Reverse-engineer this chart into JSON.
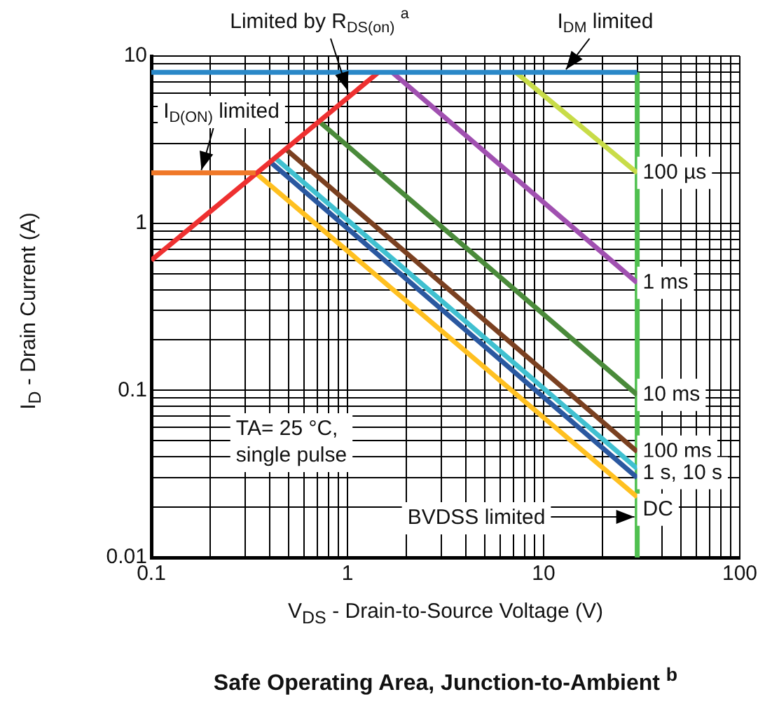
{
  "chart_data": {
    "type": "line",
    "title": "Safe Operating Area, Junction-to-Ambient $^{b}$",
    "xlabel": "V$_{DS}$ - Drain-to-Source Voltage (V)",
    "ylabel": "I$_{D}$ - Drain Current (A)",
    "log": "xy",
    "grid": true,
    "legend": false,
    "marker": "none",
    "xlim": [
      0.1,
      100
    ],
    "ylim": [
      0.01,
      10
    ],
    "xticks": [
      0.1,
      {
        "value": 0.2,
        "label": null
      },
      {
        "value": 0.3,
        "label": null
      },
      {
        "value": 0.4,
        "label": null
      },
      {
        "value": 0.5,
        "label": null
      },
      {
        "value": 0.6,
        "label": null
      },
      {
        "value": 0.7,
        "label": null
      },
      {
        "value": 0.8,
        "label": null
      },
      {
        "value": 0.9,
        "label": null
      },
      1,
      {
        "value": 2,
        "label": null
      },
      {
        "value": 3,
        "label": null
      },
      {
        "value": 4,
        "label": null
      },
      {
        "value": 5,
        "label": null
      },
      {
        "value": 6,
        "label": null
      },
      {
        "value": 7,
        "label": null
      },
      {
        "value": 8,
        "label": null
      },
      {
        "value": 9,
        "label": null
      },
      10,
      {
        "value": 20,
        "label": null
      },
      {
        "value": 30,
        "label": null
      },
      {
        "value": 40,
        "label": null
      },
      {
        "value": 50,
        "label": null
      },
      {
        "value": 60,
        "label": null
      },
      {
        "value": 70,
        "label": null
      },
      {
        "value": 80,
        "label": null
      },
      {
        "value": 90,
        "label": null
      },
      100
    ],
    "yticks": [
      0.01,
      {
        "value": 0.02,
        "label": null
      },
      {
        "value": 0.03,
        "label": null
      },
      {
        "value": 0.04,
        "label": null
      },
      {
        "value": 0.05,
        "label": null
      },
      {
        "value": 0.06,
        "label": null
      },
      {
        "value": 0.07,
        "label": null
      },
      {
        "value": 0.08,
        "label": null
      },
      {
        "value": 0.09,
        "label": null
      },
      0.1,
      {
        "value": 0.2,
        "label": null
      },
      {
        "value": 0.3,
        "label": null
      },
      {
        "value": 0.4,
        "label": null
      },
      {
        "value": 0.5,
        "label": null
      },
      {
        "value": 0.6,
        "label": null
      },
      {
        "value": 0.7,
        "label": null
      },
      {
        "value": 0.8,
        "label": null
      },
      {
        "value": 0.9,
        "label": null
      },
      1,
      {
        "value": 2,
        "label": null
      },
      {
        "value": 3,
        "label": null
      },
      {
        "value": 4,
        "label": null
      },
      {
        "value": 5,
        "label": null
      },
      {
        "value": 6,
        "label": null
      },
      {
        "value": 7,
        "label": null
      },
      {
        "value": 8,
        "label": null
      },
      {
        "value": 9,
        "label": null
      },
      10
    ],
    "series": [
      {
        "type": "line",
        "color": "#2a88c8",
        "x": [
          0.1,
          30
        ],
        "values": [
          8,
          8
        ]
      },
      {
        "type": "line",
        "color": "#f07828",
        "x": [
          0.1,
          0.34
        ],
        "values": [
          2,
          2
        ]
      },
      {
        "type": "line",
        "color": "#ee3030",
        "x": [
          0.1,
          1.44
        ],
        "values": [
          0.6,
          8
        ]
      },
      {
        "type": "line",
        "name": "100 µs",
        "color": "#c8dc48",
        "x": [
          7.2,
          30
        ],
        "values": [
          8,
          2
        ]
      },
      {
        "type": "line",
        "name": "1 ms",
        "color": "#a050b0",
        "x": [
          1.69,
          30
        ],
        "values": [
          8,
          0.44
        ]
      },
      {
        "type": "line",
        "name": "10 ms",
        "color": "#4a8a3a",
        "x": [
          0.71,
          30
        ],
        "values": [
          4.1,
          0.094
        ]
      },
      {
        "type": "line",
        "name": "100 ms",
        "color": "#7a4020",
        "x": [
          0.48,
          30
        ],
        "values": [
          2.8,
          0.043
        ]
      },
      {
        "type": "line",
        "color": "#40c0d0",
        "x": [
          0.42,
          30
        ],
        "values": [
          2.5,
          0.034
        ]
      },
      {
        "type": "line",
        "color": "#2a58a0",
        "x": [
          0.4,
          30
        ],
        "values": [
          2.35,
          0.03
        ]
      },
      {
        "type": "line",
        "name": "DC",
        "color": "#ffc020",
        "x": [
          0.34,
          30
        ],
        "values": [
          2,
          0.023
        ]
      },
      {
        "type": "line",
        "color": "#50c050",
        "x": [
          30,
          30
        ],
        "values": [
          0.01,
          8
        ]
      }
    ],
    "annotations": [
      {
        "text": "Limited by R$_{DS(on)}$ $^{a}$",
        "x": 1,
        "y": 6
      },
      {
        "text": "I$_{DM}$ limited",
        "x": 13,
        "y": 8
      },
      {
        "text": "I$_{D(ON)}$ limited",
        "x": 0.18,
        "y": 2
      },
      "TA= 25 °C,\nsingle pulse",
      {
        "text": "BVDSS limited",
        "x": 30,
        "y": 0.0175
      },
      {
        "text": "1 s, 10 s",
        "x": 30,
        "y": 0.032
      }
    ]
  }
}
